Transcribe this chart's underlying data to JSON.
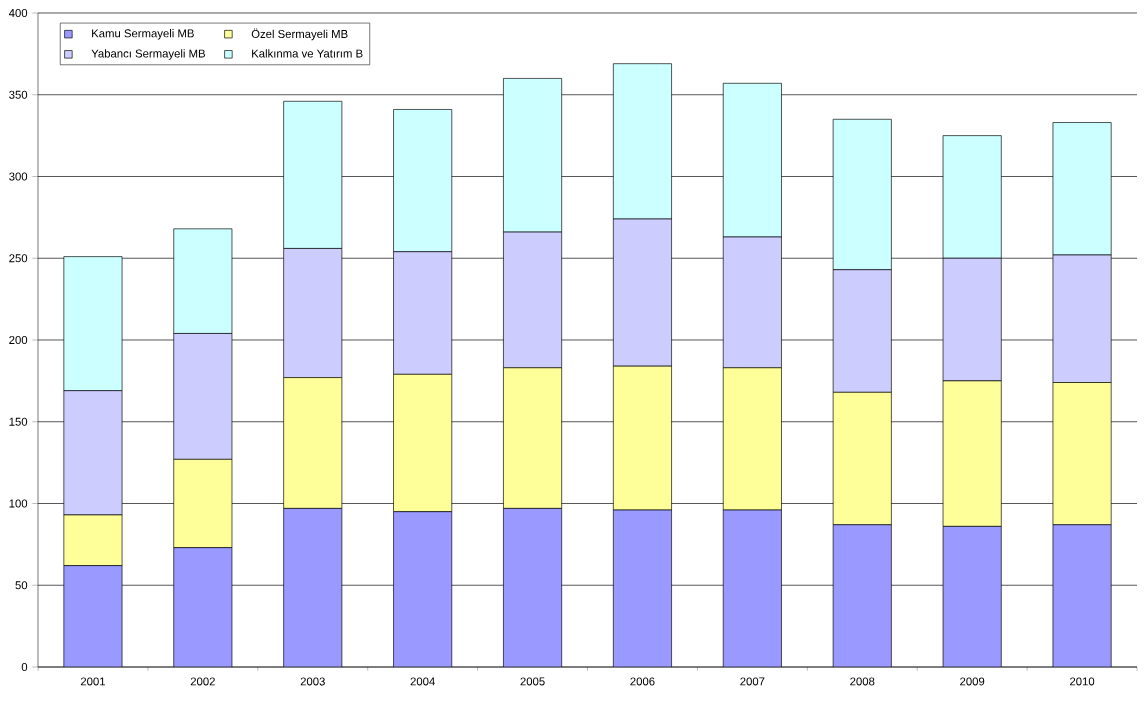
{
  "chart_data": {
    "type": "bar",
    "stacked": true,
    "categories": [
      "2001",
      "2002",
      "2003",
      "2004",
      "2005",
      "2006",
      "2007",
      "2008",
      "2009",
      "2010"
    ],
    "series": [
      {
        "name": "Kamu Sermayeli MB",
        "color": "#9999ff",
        "values": [
          62,
          73,
          97,
          95,
          97,
          96,
          96,
          87,
          86,
          87
        ]
      },
      {
        "name": "Özel Sermayeli MB",
        "color": "#ffff99",
        "values": [
          31,
          54,
          80,
          84,
          86,
          88,
          87,
          81,
          89,
          87
        ]
      },
      {
        "name": "Yabancı Sermayeli MB",
        "color": "#ccccff",
        "values": [
          76,
          77,
          79,
          75,
          83,
          90,
          80,
          75,
          75,
          78
        ]
      },
      {
        "name": "Kalkınma ve Yatırım B",
        "color": "#ccffff",
        "values": [
          82,
          64,
          90,
          87,
          94,
          95,
          94,
          92,
          75,
          81
        ]
      }
    ],
    "ylim": [
      0,
      400
    ],
    "yticks": [
      0,
      50,
      100,
      150,
      200,
      250,
      300,
      350,
      400
    ],
    "grid": "y",
    "legend": "top left"
  }
}
